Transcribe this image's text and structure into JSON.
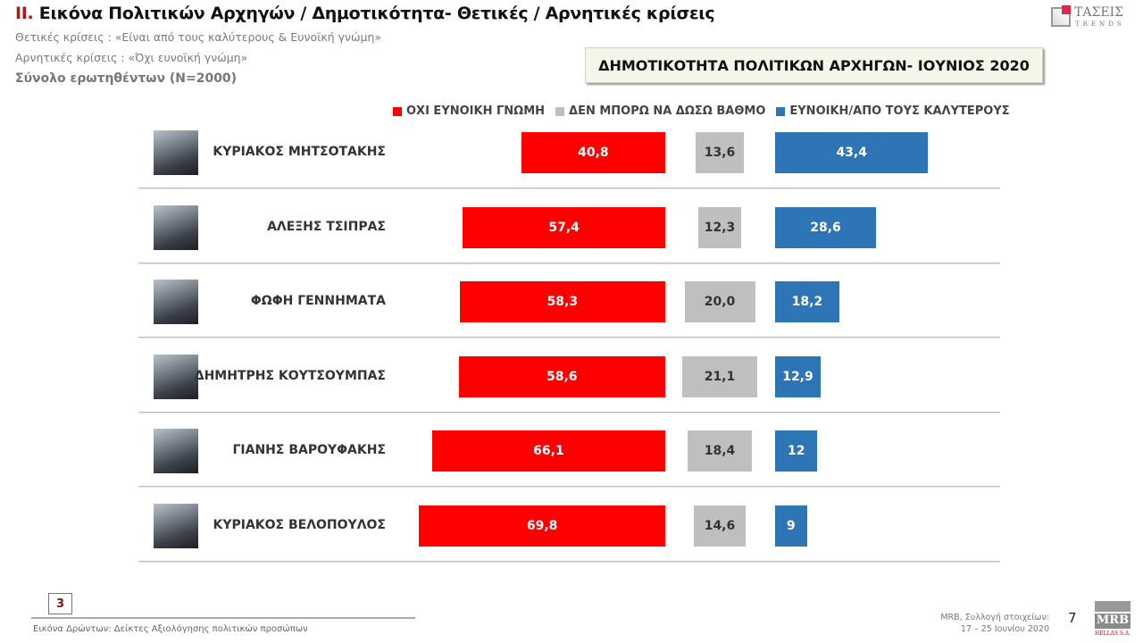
{
  "header": {
    "title_num": "II.",
    "title_text": " Εικόνα Πολιτικών Αρχηγών  / Δημοτικότητα- Θετικές / Αρνητικές κρίσεις",
    "positive_def": "Θετικές κρίσεις : «Είναι από τους καλύτερους &  Ευνοϊκή γνώμη»",
    "negative_def": "Αρνητικές κρίσεις : «Όχι ευνοϊκή γνώμη»",
    "base": "Σύνολο ερωτηθέντων (N=2000)",
    "logo_text": "ΤΑΣΕΙΣ",
    "logo_sub": "TRENDS"
  },
  "chart_data": {
    "type": "bar",
    "title": "ΔΗΜΟΤΙΚΟΤΗΤΑ ΠΟΛΙΤΙΚΩΝ ΑΡΧΗΓΩΝ- ΙΟΥΝΙΟΣ 2020",
    "legend_placement": "top",
    "categories": [
      "ΚΥΡΙΑΚΟΣ ΜΗΤΣΟΤΑΚΗΣ",
      "ΑΛΕΞΗΣ ΤΣΙΠΡΑΣ",
      "ΦΩΦΗ ΓΕΝΝΗΜΑΤΑ",
      "ΔΗΜΗΤΡΗΣ ΚΟΥΤΣΟΥΜΠΑΣ",
      "ΓΙΑΝΗΣ ΒΑΡΟΥΦΑΚΗΣ",
      "ΚΥΡΙΑΚΟΣ ΒΕΛΟΠΟΥΛΟΣ"
    ],
    "series": [
      {
        "name": "ΟΧΙ ΕΥΝΟΙΚΗ ΓΝΩΜΗ",
        "color": "#ff0000",
        "values": [
          40.8,
          57.4,
          58.3,
          58.6,
          66.1,
          69.8
        ],
        "labels": [
          "40,8",
          "57,4",
          "58,3",
          "58,6",
          "66,1",
          "69,8"
        ]
      },
      {
        "name": "ΔΕΝ ΜΠΟΡΩ ΝΑ ΔΩΣΩ ΒΑΘΜΟ",
        "color": "#bfbfbf",
        "values": [
          13.6,
          12.3,
          20.0,
          21.1,
          18.4,
          14.6
        ],
        "labels": [
          "13,6",
          "12,3",
          "20,0",
          "21,1",
          "18,4",
          "14,6"
        ]
      },
      {
        "name": "ΕΥΝΟΙΚΗ/ΑΠΟ ΤΟΥΣ ΚΑΛΥΤΕΡΟΥΣ",
        "color": "#2e75b6",
        "values": [
          43.4,
          28.6,
          18.2,
          12.9,
          12,
          9
        ],
        "labels": [
          "43,4",
          "28,6",
          "18,2",
          "12,9",
          "12",
          "9"
        ]
      }
    ]
  },
  "footer": {
    "page_box": "3",
    "section": "Εικόνα Δρώντων: Δείκτες Αξιολόγησης πολιτικών προσώπων",
    "source_line1": "MRB, Συλλογή στοιχείων:",
    "source_line2": "17  – 25  Ιουνίου 2020",
    "page_number": "7",
    "mrb_logo": "MRB",
    "mrb_sub": "HELLAS S.A."
  }
}
